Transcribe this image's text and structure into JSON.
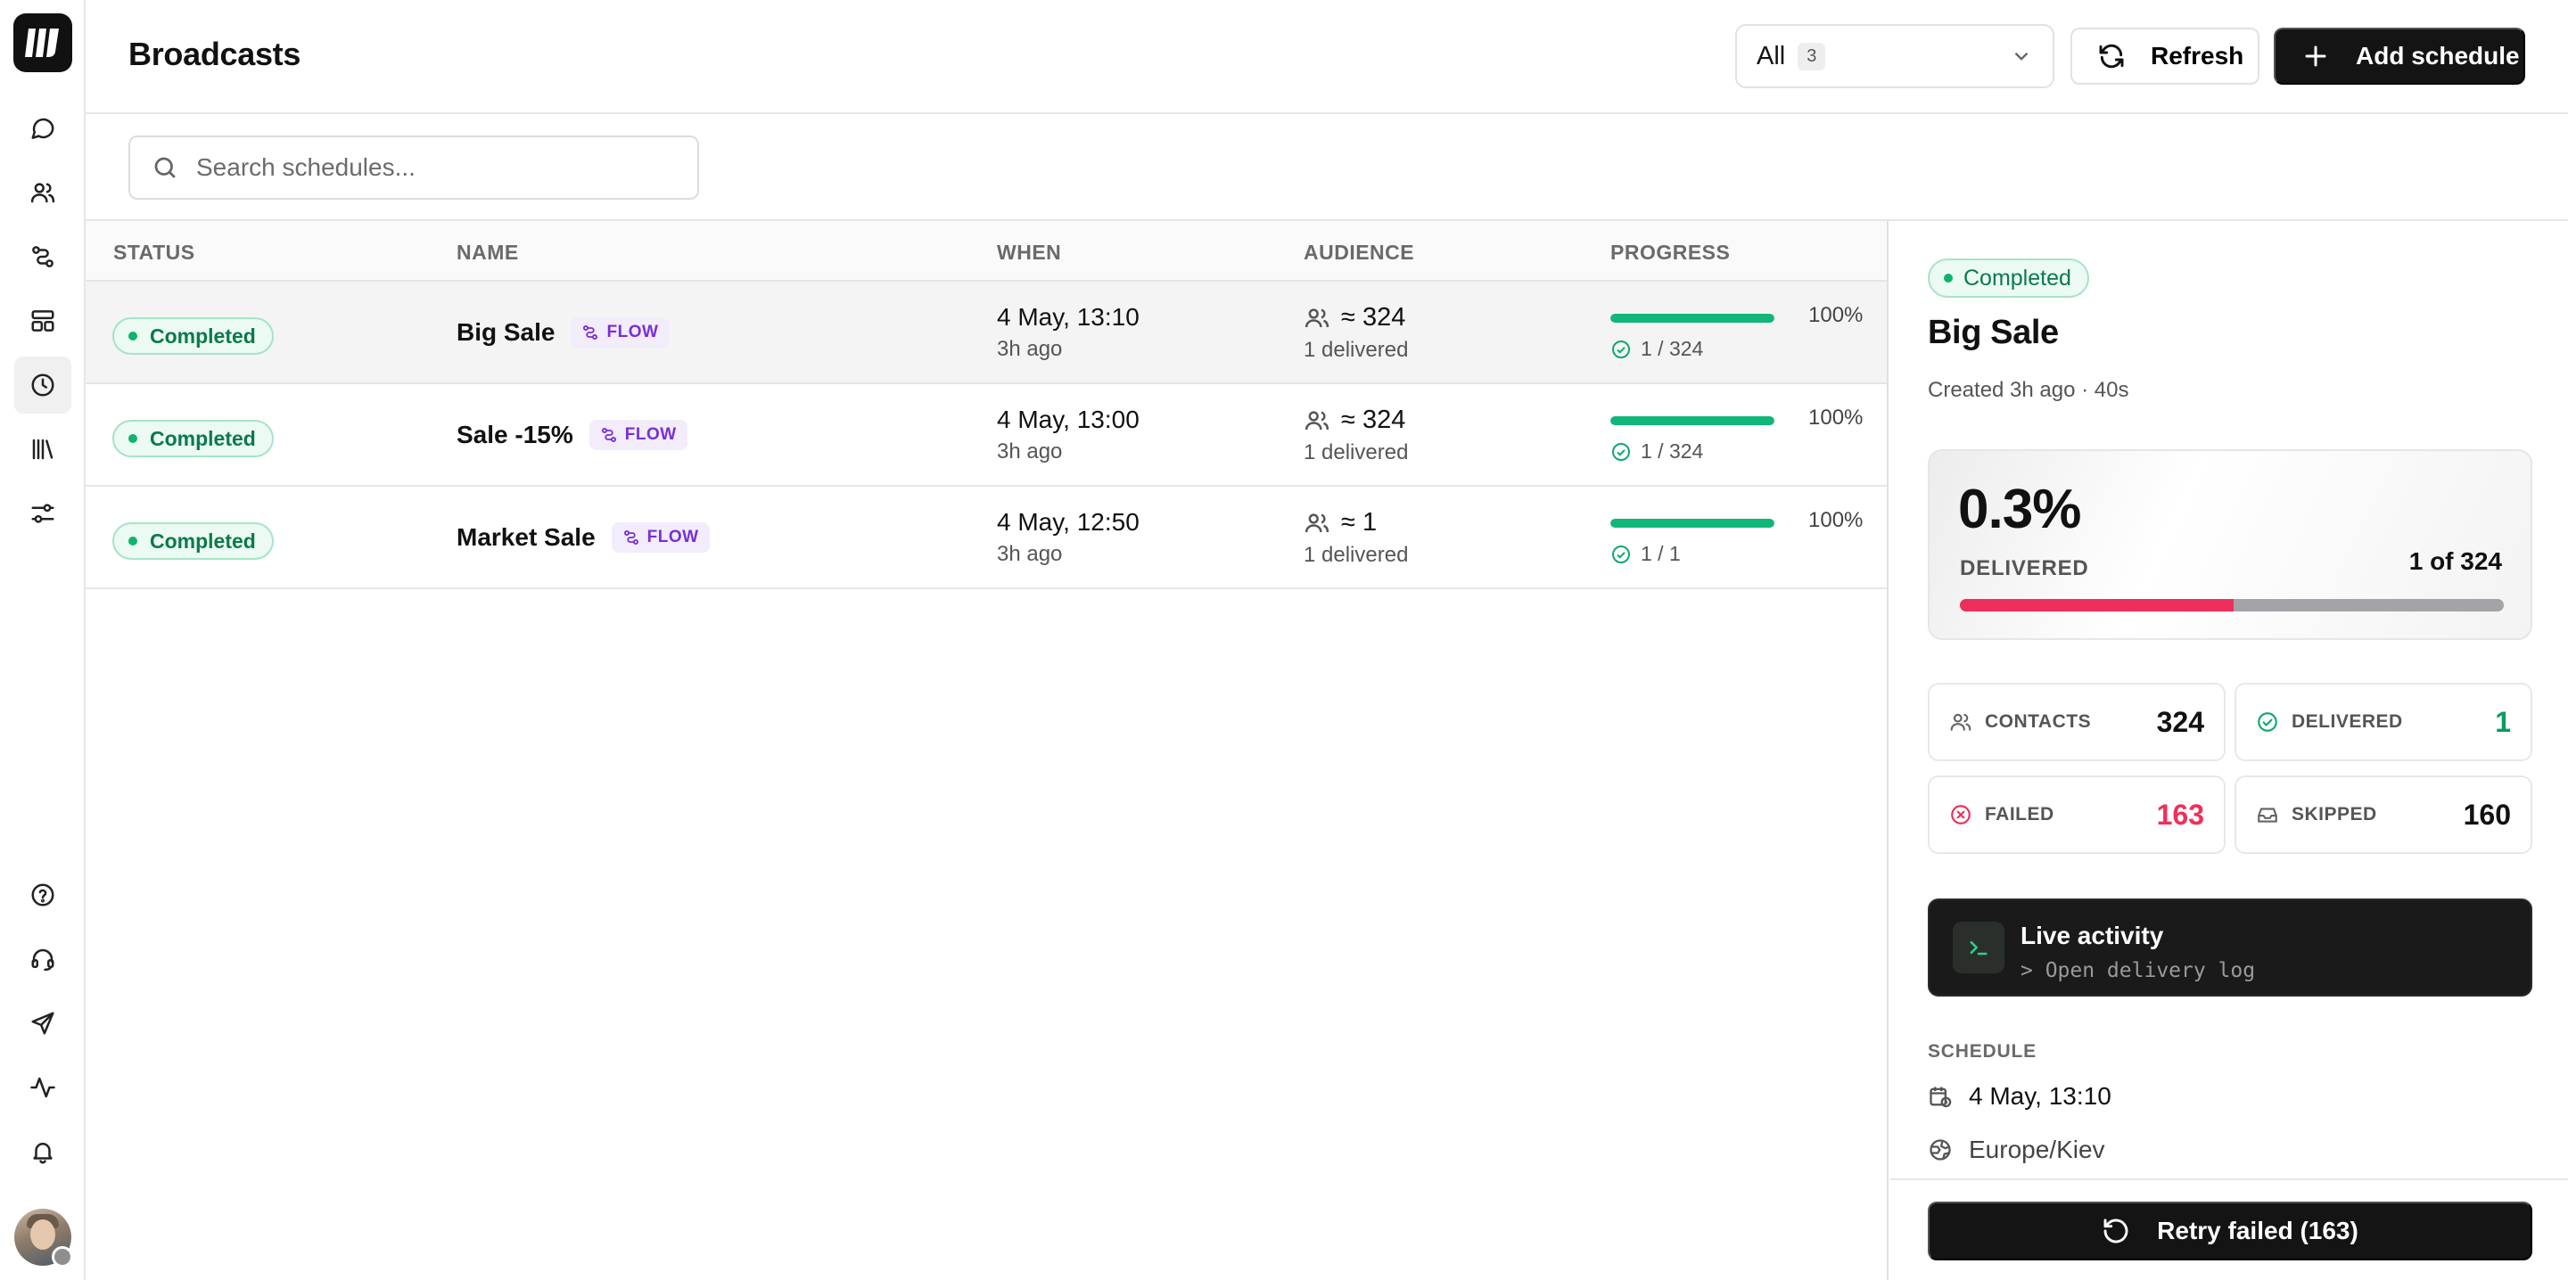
{
  "app": {
    "title": "Broadcasts"
  },
  "rail": {
    "top_icons": [
      "chat-icon",
      "contacts-icon",
      "flows-icon",
      "dashboard-icon",
      "schedules-icon",
      "library-icon",
      "settings-sliders-icon"
    ],
    "bottom_icons": [
      "help-icon",
      "support-headset-icon",
      "send-icon",
      "activity-icon",
      "notifications-bell-icon"
    ],
    "active": "schedules-icon"
  },
  "header": {
    "filter": {
      "label": "All",
      "count": "3"
    },
    "refresh_label": "Refresh",
    "add_label": "Add schedule"
  },
  "search": {
    "placeholder": "Search schedules...",
    "value": ""
  },
  "table": {
    "columns": [
      "STATUS",
      "NAME",
      "WHEN",
      "AUDIENCE",
      "PROGRESS"
    ],
    "rows": [
      {
        "status": "Completed",
        "name": "Big Sale",
        "badge": "FLOW",
        "when": "4 May, 13:10",
        "ago": "3h ago",
        "audience": "≈ 324",
        "delivered": "1 delivered",
        "progress_pct": "100%",
        "progress_value": 1.0,
        "count": "1 / 324"
      },
      {
        "status": "Completed",
        "name": "Sale -15%",
        "badge": "FLOW",
        "when": "4 May, 13:00",
        "ago": "3h ago",
        "audience": "≈ 324",
        "delivered": "1 delivered",
        "progress_pct": "100%",
        "progress_value": 1.0,
        "count": "1 / 324"
      },
      {
        "status": "Completed",
        "name": "Market Sale",
        "badge": "FLOW",
        "when": "4 May, 12:50",
        "ago": "3h ago",
        "audience": "≈ 1",
        "delivered": "1 delivered",
        "progress_pct": "100%",
        "progress_value": 1.0,
        "count": "1 / 1"
      }
    ]
  },
  "panel": {
    "status": "Completed",
    "title": "Big Sale",
    "created": "Created 3h ago · 40s",
    "delivered_pct": "0.3%",
    "delivered_label": "DELIVERED",
    "of_label": "1 of 324",
    "bar_failed_fraction": 0.503,
    "stats": {
      "contacts": {
        "label": "CONTACTS",
        "value": "324"
      },
      "delivered": {
        "label": "DELIVERED",
        "value": "1"
      },
      "failed": {
        "label": "FAILED",
        "value": "163"
      },
      "skipped": {
        "label": "SKIPPED",
        "value": "160"
      }
    },
    "live": {
      "title": "Live activity",
      "subtitle": "> Open delivery log"
    },
    "schedule": {
      "heading": "SCHEDULE",
      "datetime": "4 May, 13:10",
      "timezone": "Europe/Kiev"
    },
    "retry_label": "Retry failed (163)"
  },
  "colors": {
    "success": "#10b36b",
    "danger": "#ef2f5b",
    "flow_badge": "#7a2ed6",
    "primary_button": "#141414"
  }
}
